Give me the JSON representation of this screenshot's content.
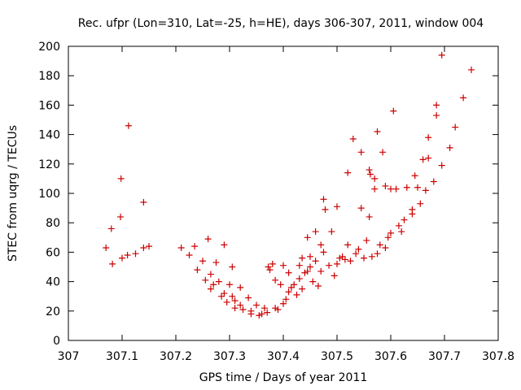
{
  "chart_data": {
    "type": "scatter",
    "title": "Rec. ufpr (Lon=310, Lat=-25, h=HE), days 306-307, 2011, window 004",
    "xlabel": "GPS time / Days of year 2011",
    "ylabel": "STEC from uqrg / TECUs",
    "xlim": [
      307,
      307.8
    ],
    "ylim": [
      0,
      200
    ],
    "xticks": [
      "307",
      "307.1",
      "307.2",
      "307.3",
      "307.4",
      "307.5",
      "307.6",
      "307.7",
      "307.8"
    ],
    "yticks": [
      "0",
      "20",
      "40",
      "60",
      "80",
      "100",
      "120",
      "140",
      "160",
      "180",
      "200"
    ],
    "grid": false,
    "legend": "none",
    "marker": "+",
    "marker_color": "#cc0000",
    "series": [
      {
        "points": [
          [
            307.07,
            63
          ],
          [
            307.08,
            76
          ],
          [
            307.082,
            52
          ],
          [
            307.097,
            84
          ],
          [
            307.098,
            110
          ],
          [
            307.1,
            56
          ],
          [
            307.11,
            58
          ],
          [
            307.112,
            146
          ],
          [
            307.125,
            59
          ],
          [
            307.14,
            63
          ],
          [
            307.14,
            94
          ],
          [
            307.15,
            64
          ],
          [
            307.21,
            63
          ],
          [
            307.225,
            58
          ],
          [
            307.235,
            64
          ],
          [
            307.24,
            48
          ],
          [
            307.25,
            54
          ],
          [
            307.255,
            41
          ],
          [
            307.26,
            69
          ],
          [
            307.265,
            45
          ],
          [
            307.265,
            35
          ],
          [
            307.27,
            38
          ],
          [
            307.275,
            53
          ],
          [
            307.28,
            40
          ],
          [
            307.285,
            30
          ],
          [
            307.29,
            65
          ],
          [
            307.29,
            32
          ],
          [
            307.295,
            26
          ],
          [
            307.3,
            38
          ],
          [
            307.305,
            30
          ],
          [
            307.305,
            50
          ],
          [
            307.31,
            22
          ],
          [
            307.31,
            27
          ],
          [
            307.32,
            36
          ],
          [
            307.32,
            24
          ],
          [
            307.325,
            21
          ],
          [
            307.335,
            29
          ],
          [
            307.34,
            20
          ],
          [
            307.34,
            18
          ],
          [
            307.35,
            24
          ],
          [
            307.355,
            17
          ],
          [
            307.36,
            18
          ],
          [
            307.365,
            22
          ],
          [
            307.37,
            19
          ],
          [
            307.372,
            50
          ],
          [
            307.375,
            48
          ],
          [
            307.38,
            52
          ],
          [
            307.385,
            41
          ],
          [
            307.385,
            22
          ],
          [
            307.39,
            21
          ],
          [
            307.395,
            38
          ],
          [
            307.4,
            51
          ],
          [
            307.4,
            25
          ],
          [
            307.405,
            28
          ],
          [
            307.41,
            33
          ],
          [
            307.41,
            46
          ],
          [
            307.415,
            36
          ],
          [
            307.42,
            38
          ],
          [
            307.425,
            31
          ],
          [
            307.43,
            42
          ],
          [
            307.43,
            51
          ],
          [
            307.435,
            56
          ],
          [
            307.435,
            35
          ],
          [
            307.44,
            46
          ],
          [
            307.445,
            47
          ],
          [
            307.445,
            70
          ],
          [
            307.45,
            50
          ],
          [
            307.45,
            57
          ],
          [
            307.455,
            40
          ],
          [
            307.46,
            74
          ],
          [
            307.46,
            54
          ],
          [
            307.465,
            37
          ],
          [
            307.47,
            65
          ],
          [
            307.47,
            47
          ],
          [
            307.475,
            60
          ],
          [
            307.475,
            96
          ],
          [
            307.478,
            89
          ],
          [
            307.485,
            51
          ],
          [
            307.49,
            74
          ],
          [
            307.495,
            44
          ],
          [
            307.5,
            91
          ],
          [
            307.5,
            52
          ],
          [
            307.505,
            56
          ],
          [
            307.51,
            57
          ],
          [
            307.515,
            55
          ],
          [
            307.52,
            114
          ],
          [
            307.52,
            65
          ],
          [
            307.525,
            54
          ],
          [
            307.53,
            137
          ],
          [
            307.535,
            59
          ],
          [
            307.54,
            62
          ],
          [
            307.545,
            128
          ],
          [
            307.545,
            90
          ],
          [
            307.55,
            56
          ],
          [
            307.555,
            68
          ],
          [
            307.56,
            116
          ],
          [
            307.56,
            84
          ],
          [
            307.562,
            113
          ],
          [
            307.565,
            57
          ],
          [
            307.57,
            110
          ],
          [
            307.57,
            103
          ],
          [
            307.575,
            59
          ],
          [
            307.575,
            142
          ],
          [
            307.58,
            65
          ],
          [
            307.585,
            128
          ],
          [
            307.59,
            105
          ],
          [
            307.59,
            63
          ],
          [
            307.595,
            70
          ],
          [
            307.6,
            73
          ],
          [
            307.6,
            103
          ],
          [
            307.605,
            156
          ],
          [
            307.61,
            103
          ],
          [
            307.615,
            78
          ],
          [
            307.62,
            74
          ],
          [
            307.625,
            82
          ],
          [
            307.63,
            104
          ],
          [
            307.64,
            89
          ],
          [
            307.64,
            86
          ],
          [
            307.645,
            112
          ],
          [
            307.65,
            104
          ],
          [
            307.655,
            93
          ],
          [
            307.66,
            123
          ],
          [
            307.665,
            102
          ],
          [
            307.67,
            124
          ],
          [
            307.67,
            138
          ],
          [
            307.68,
            108
          ],
          [
            307.685,
            153
          ],
          [
            307.685,
            160
          ],
          [
            307.695,
            119
          ],
          [
            307.695,
            194
          ],
          [
            307.71,
            131
          ],
          [
            307.72,
            145
          ],
          [
            307.735,
            165
          ],
          [
            307.75,
            184
          ]
        ]
      }
    ]
  }
}
